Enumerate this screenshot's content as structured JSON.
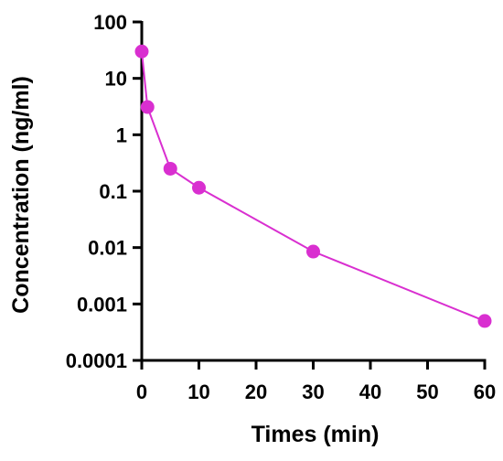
{
  "chart_data": {
    "type": "line",
    "x_scale": "linear",
    "y_scale": "log",
    "xlabel": "Times (min)",
    "ylabel": "Concentration (ng/ml)",
    "xlim": [
      0,
      60
    ],
    "ylim": [
      0.0001,
      100
    ],
    "x_ticks": [
      0,
      10,
      20,
      30,
      40,
      50,
      60
    ],
    "x_tick_labels": [
      "0",
      "10",
      "20",
      "30",
      "40",
      "50",
      "60"
    ],
    "y_ticks": [
      0.0001,
      0.001,
      0.01,
      0.1,
      1,
      10,
      100
    ],
    "y_tick_labels": [
      "0.0001",
      "0.001",
      "0.01",
      "0.1",
      "1",
      "10",
      "100"
    ],
    "grid": false,
    "series": [
      {
        "x": [
          0,
          1,
          5,
          10,
          30,
          60
        ],
        "y": [
          30,
          3.1,
          0.25,
          0.115,
          0.0085,
          0.0005
        ],
        "color": "#d92fd0"
      }
    ]
  }
}
